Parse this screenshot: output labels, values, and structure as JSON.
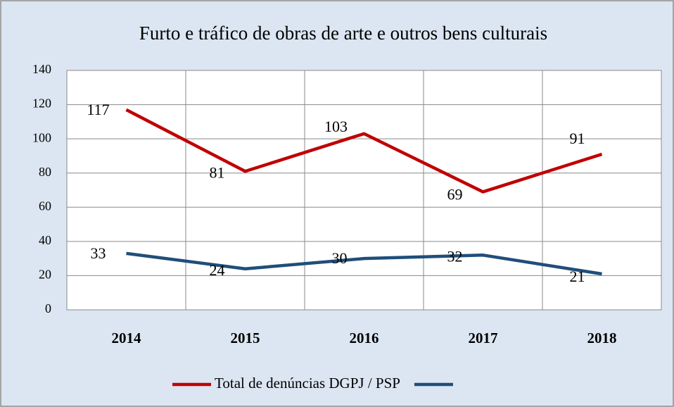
{
  "chart_data": {
    "type": "line",
    "title": "Furto e tráfico de obras de arte e outros bens culturais",
    "categories": [
      "2014",
      "2015",
      "2016",
      "2017",
      "2018"
    ],
    "series": [
      {
        "name": "Total de denúncias DGPJ / PSP",
        "color": "#c00000",
        "values": [
          117,
          81,
          103,
          69,
          91
        ]
      },
      {
        "color": "#1f4e79",
        "values": [
          33,
          24,
          30,
          32,
          21
        ]
      }
    ],
    "ylim": [
      0,
      140
    ],
    "yticks": [
      0,
      20,
      40,
      60,
      80,
      100,
      120,
      140
    ],
    "grid": true,
    "legend": "bottom"
  }
}
